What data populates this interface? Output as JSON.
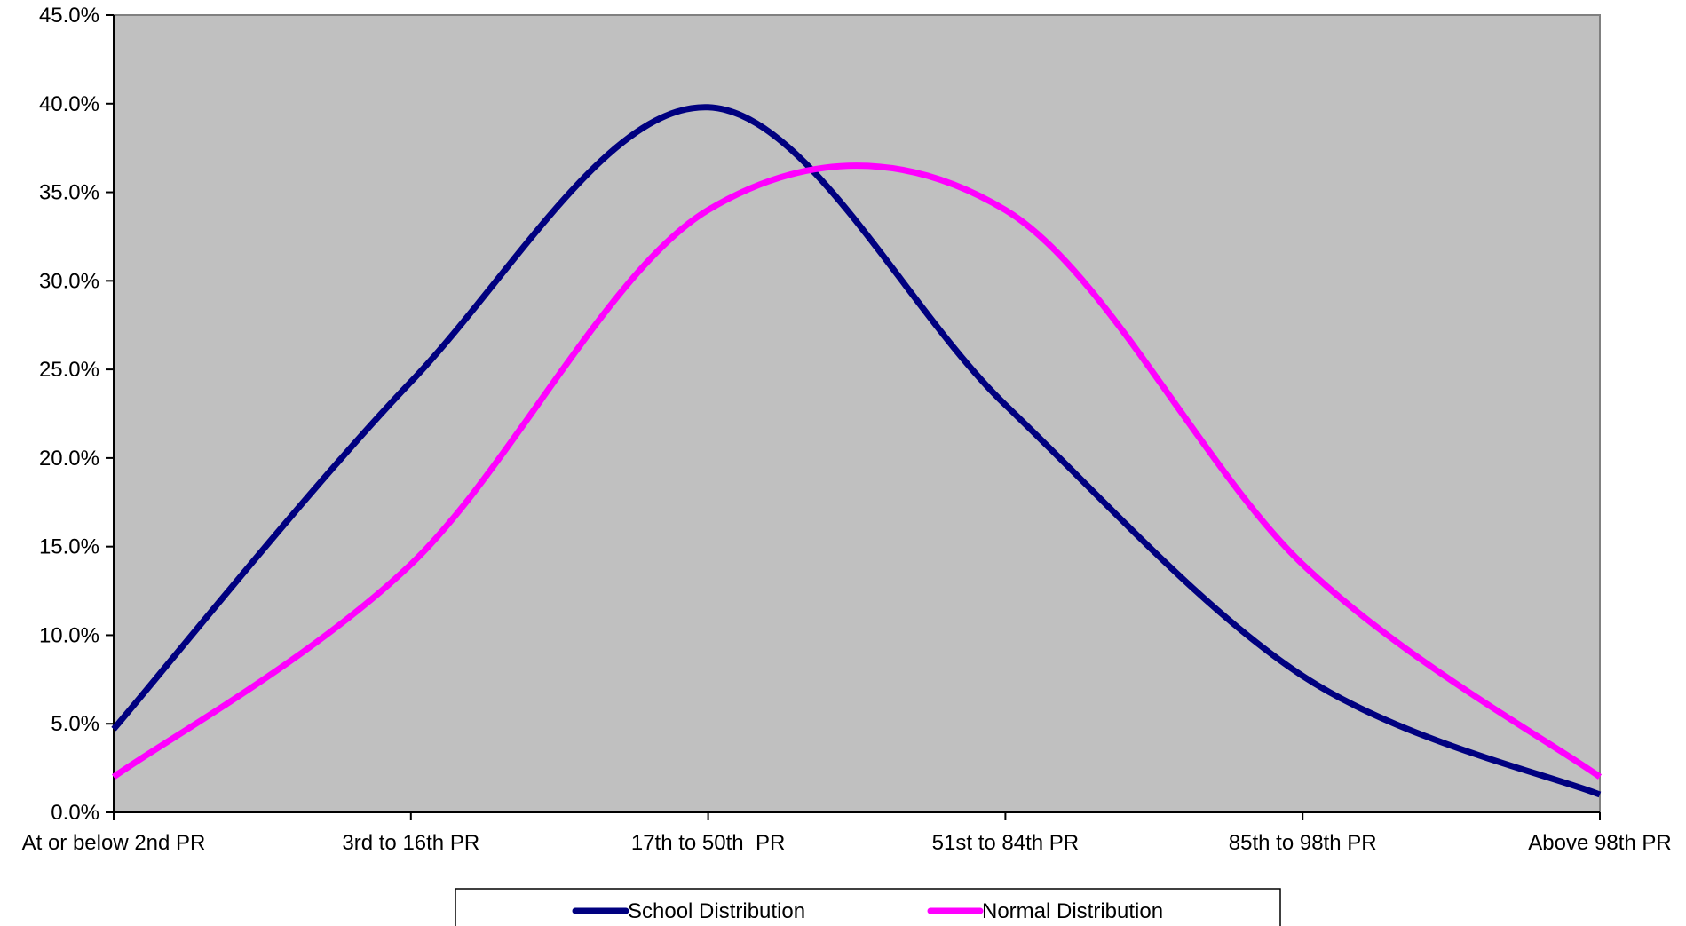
{
  "chart_data": {
    "type": "line",
    "title": "",
    "xlabel": "",
    "ylabel": "",
    "categories": [
      "At or below 2nd PR",
      "3rd to 16th PR",
      "17th to 50th  PR",
      "51st to 84th PR",
      "85th to 98th PR",
      "Above 98th PR"
    ],
    "series": [
      {
        "name": "School Distribution",
        "values": [
          4.7,
          24.3,
          39.8,
          23.0,
          7.7,
          1.0
        ],
        "color": "#000080"
      },
      {
        "name": "Normal Distribution",
        "values": [
          2.0,
          14.0,
          34.0,
          34.0,
          14.0,
          2.0
        ],
        "color": "#FF00FF"
      }
    ],
    "ylim": [
      0,
      45
    ],
    "yticks": [
      "0.0%",
      "5.0%",
      "10.0%",
      "15.0%",
      "20.0%",
      "25.0%",
      "30.0%",
      "35.0%",
      "40.0%",
      "45.0%"
    ],
    "ytick_values": [
      0,
      5,
      10,
      15,
      20,
      25,
      30,
      35,
      40,
      45
    ],
    "grid": false,
    "plot_background": "#C0C0C0",
    "legend_position": "bottom",
    "smooth": true
  }
}
